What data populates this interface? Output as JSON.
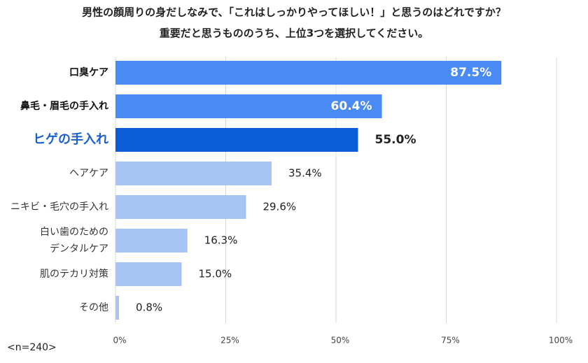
{
  "chart_data": {
    "type": "bar",
    "orientation": "horizontal",
    "title": "男性の顔周りの身だしなみで、「これはしっかりやってほしい！」と思うのはどれですか？",
    "subtitle": "重要だと思うもののうち、上位3つを選択してください。",
    "categories": [
      "口臭ケア",
      "鼻毛・眉毛の手入れ",
      "ヒゲの手入れ",
      "ヘアケア",
      "ニキビ・毛穴の手入れ",
      "白い歯のための\nデンタルケア",
      "肌のテカリ対策",
      "その他"
    ],
    "values": [
      87.5,
      60.4,
      55.0,
      35.4,
      29.6,
      16.3,
      15.0,
      0.8
    ],
    "value_labels": [
      "87.5%",
      "60.4%",
      "55.0%",
      "35.4%",
      "29.6%",
      "16.3%",
      "15.0%",
      "0.8%"
    ],
    "colors": [
      "#4a8af4",
      "#4a8af4",
      "#0b5cd6",
      "#a8c4f5",
      "#a8c4f5",
      "#a8c4f5",
      "#a8c4f5",
      "#a8c4f5"
    ],
    "xlim": [
      0,
      100
    ],
    "xticks": [
      {
        "value": 0,
        "label": "0%"
      },
      {
        "value": 25,
        "label": "25%"
      },
      {
        "value": 50,
        "label": "50%"
      },
      {
        "value": 75,
        "label": "75%"
      },
      {
        "value": 100,
        "label": "100%"
      }
    ],
    "grid": true,
    "note": "<n=240>"
  }
}
